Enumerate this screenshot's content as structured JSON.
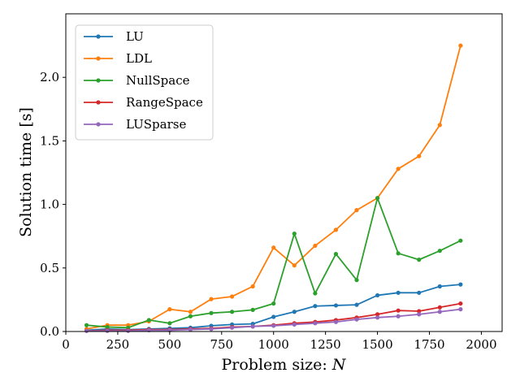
{
  "chart_data": {
    "type": "line",
    "title": "",
    "xlabel": "Problem size: ",
    "xlabel_var": "N",
    "ylabel": "Solution time [s]",
    "xlim": [
      0,
      2100
    ],
    "ylim": [
      0,
      2.5
    ],
    "xticks": [
      0,
      250,
      500,
      750,
      1000,
      1250,
      1500,
      1750,
      2000
    ],
    "yticks": [
      0.0,
      0.5,
      1.0,
      1.5,
      2.0
    ],
    "ytick_labels": [
      "0.0",
      "0.5",
      "1.0",
      "1.5",
      "2.0"
    ],
    "grid": false,
    "legend_position": "top-left",
    "x": [
      100,
      200,
      300,
      400,
      500,
      600,
      700,
      800,
      900,
      1000,
      1100,
      1200,
      1300,
      1400,
      1500,
      1600,
      1700,
      1800,
      1900
    ],
    "series": [
      {
        "name": "LU",
        "color": "#1f77b4",
        "values": [
          0.01,
          0.02,
          0.015,
          0.02,
          0.025,
          0.03,
          0.045,
          0.055,
          0.06,
          0.115,
          0.155,
          0.2,
          0.205,
          0.21,
          0.285,
          0.305,
          0.305,
          0.355,
          0.37
        ]
      },
      {
        "name": "LDL",
        "color": "#ff7f0e",
        "values": [
          0.02,
          0.05,
          0.05,
          0.08,
          0.175,
          0.155,
          0.255,
          0.275,
          0.355,
          0.66,
          0.52,
          0.675,
          0.8,
          0.955,
          1.05,
          1.28,
          1.38,
          1.625,
          2.25
        ]
      },
      {
        "name": "NullSpace",
        "color": "#2ca02c",
        "values": [
          0.05,
          0.035,
          0.03,
          0.09,
          0.065,
          0.12,
          0.145,
          0.155,
          0.17,
          0.22,
          0.77,
          0.3,
          0.61,
          0.405,
          1.05,
          0.615,
          0.565,
          0.635,
          0.715
        ]
      },
      {
        "name": "RangeSpace",
        "color": "#d62728",
        "values": [
          0.005,
          0.01,
          0.01,
          0.015,
          0.015,
          0.02,
          0.025,
          0.035,
          0.04,
          0.05,
          0.065,
          0.075,
          0.09,
          0.11,
          0.135,
          0.165,
          0.16,
          0.19,
          0.22
        ]
      },
      {
        "name": "LUSparse",
        "color": "#9467bd",
        "values": [
          0.005,
          0.005,
          0.005,
          0.01,
          0.01,
          0.015,
          0.02,
          0.03,
          0.04,
          0.045,
          0.055,
          0.065,
          0.075,
          0.095,
          0.11,
          0.12,
          0.135,
          0.155,
          0.175
        ]
      }
    ]
  }
}
